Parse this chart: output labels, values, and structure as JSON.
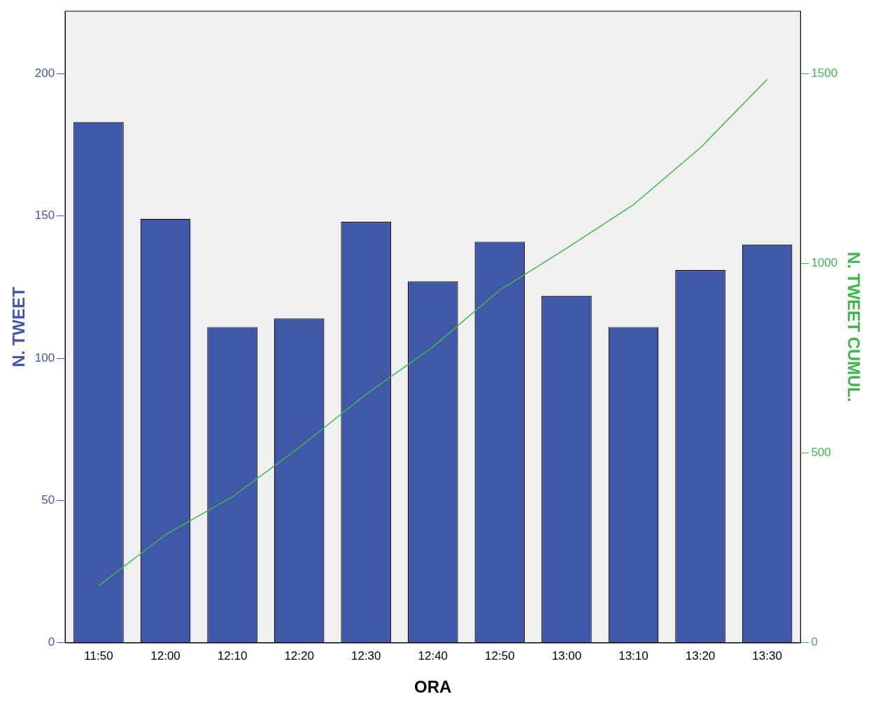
{
  "chart_data": {
    "type": "bar",
    "xlabel": "ORA",
    "ylabel": "N. TWEET",
    "y2label": "N. TWEET CUMUL.",
    "categories": [
      "11:50",
      "12:00",
      "12:10",
      "12:20",
      "12:30",
      "12:40",
      "12:50",
      "13:00",
      "13:10",
      "13:20",
      "13:30"
    ],
    "series": [
      {
        "color": "#3f58a8",
        "values": [
          183,
          149,
          111,
          114,
          148,
          127,
          141,
          122,
          111,
          131,
          140
        ]
      },
      {
        "type": "line",
        "axis": "y2",
        "color": "#3cb94a",
        "values": [
          150,
          285,
          385,
          515,
          655,
          780,
          930,
          1040,
          1155,
          1305,
          1485
        ]
      }
    ],
    "ylim": [
      0,
      222
    ],
    "yticks": [
      0,
      50,
      100,
      150,
      200
    ],
    "y2lim": [
      0,
      1665
    ],
    "y2ticks": [
      0,
      500,
      1000,
      1500
    ],
    "grid": false,
    "legend": false,
    "marker": "none",
    "line_style": "solid"
  }
}
